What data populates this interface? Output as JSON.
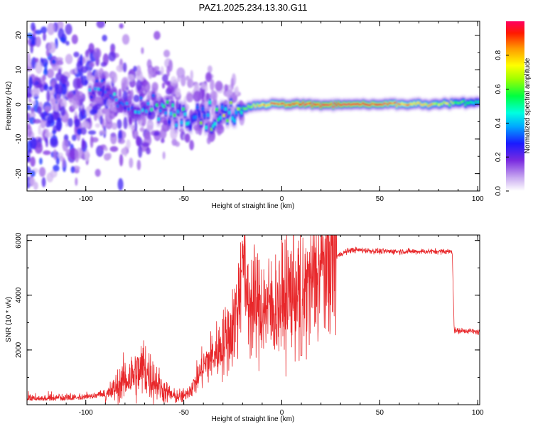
{
  "title": "PAZ1.2025.234.13.30.G11",
  "chart_data": [
    {
      "type": "heatmap",
      "name": "spectrogram",
      "xlabel": "Height of straight line (km)",
      "ylabel": "Frequency (Hz)",
      "xlim": [
        -130,
        101
      ],
      "ylim": [
        -25,
        24
      ],
      "xticks": [
        -100,
        -50,
        0,
        50,
        100
      ],
      "xtick_labels": [
        "-100",
        "-50",
        "0",
        "50",
        "100"
      ],
      "yticks": [
        20,
        10,
        0,
        -10,
        -20
      ],
      "ytick_labels": [
        "20",
        "10",
        "0",
        "-10",
        "-20"
      ],
      "colorbar": {
        "label": "Normalized spectral amplitude",
        "range": [
          0,
          1
        ],
        "ticks": [
          0.0,
          0.2,
          0.4,
          0.6,
          0.8
        ],
        "tick_labels": [
          "0.0",
          "0.2",
          "0.4",
          "0.6",
          "0.8"
        ],
        "colormap": "rainbow (purple-blue-cyan-green-yellow-orange-red)"
      },
      "ridge": [
        {
          "x": -95,
          "freq": 4.5,
          "amp": 0.3
        },
        {
          "x": -85,
          "freq": 2.0,
          "amp": 0.3
        },
        {
          "x": -75,
          "freq": -1.5,
          "amp": 0.35
        },
        {
          "x": -65,
          "freq": -1.0,
          "amp": 0.35
        },
        {
          "x": -50,
          "freq": -2.5,
          "amp": 0.45
        },
        {
          "x": -40,
          "freq": -3.0,
          "amp": 0.45
        },
        {
          "x": -30,
          "freq": -3.5,
          "amp": 0.5
        },
        {
          "x": -20,
          "freq": -1.0,
          "amp": 0.6
        },
        {
          "x": -10,
          "freq": 0.0,
          "amp": 0.8
        },
        {
          "x": 0,
          "freq": 0.0,
          "amp": 0.9
        },
        {
          "x": 20,
          "freq": 0.0,
          "amp": 0.95
        },
        {
          "x": 50,
          "freq": 0.0,
          "amp": 0.9
        },
        {
          "x": 80,
          "freq": 0.0,
          "amp": 0.7
        },
        {
          "x": 100,
          "freq": 0.8,
          "amp": 0.5
        }
      ]
    },
    {
      "type": "line",
      "name": "snr",
      "xlabel": "Height of straight line (km)",
      "ylabel": "SNR (10 * v/v)",
      "xlim": [
        -130,
        101
      ],
      "ylim": [
        0,
        6200
      ],
      "xticks": [
        -100,
        -50,
        0,
        50,
        100
      ],
      "xtick_labels": [
        "-100",
        "-50",
        "0",
        "50",
        "100"
      ],
      "yticks": [
        2000,
        4000,
        6000
      ],
      "ytick_labels": [
        "2000",
        "4000",
        "6000"
      ],
      "color": "#e8272a",
      "series": [
        {
          "name": "SNR",
          "x": [
            -130,
            -110,
            -100,
            -90,
            -85,
            -80,
            -75,
            -72,
            -70,
            -68,
            -65,
            -60,
            -55,
            -50,
            -45,
            -40,
            -35,
            -30,
            -25,
            -22,
            -20,
            -18,
            -15,
            -10,
            -5,
            0,
            5,
            10,
            15,
            20,
            25,
            30,
            35,
            40,
            50,
            60,
            70,
            80,
            87,
            88,
            89,
            95,
            101
          ],
          "y": [
            150,
            150,
            200,
            300,
            600,
            900,
            1100,
            1200,
            1400,
            1100,
            900,
            500,
            300,
            300,
            700,
            1400,
            1800,
            2200,
            2800,
            3800,
            5000,
            4200,
            3600,
            3600,
            3500,
            3700,
            4200,
            4000,
            4400,
            5000,
            5300,
            5500,
            5650,
            5650,
            5600,
            5600,
            5600,
            5600,
            5600,
            2700,
            2700,
            2700,
            2650
          ]
        }
      ]
    }
  ]
}
